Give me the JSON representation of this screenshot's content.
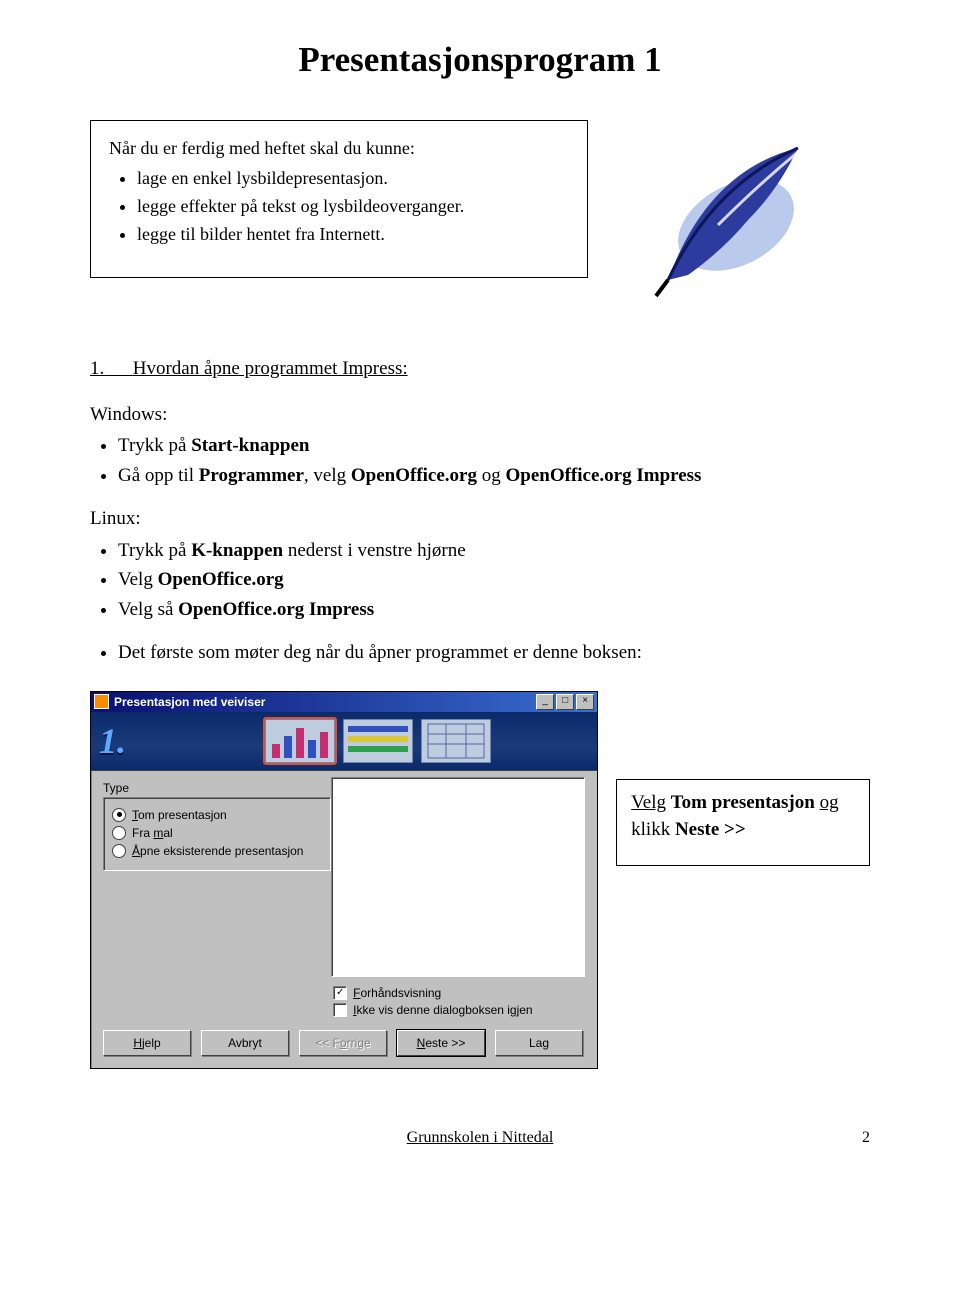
{
  "title": "Presentasjonsprogram 1",
  "intro": {
    "lead": "Når du er ferdig med heftet skal du kunne:",
    "items": [
      "lage en enkel lysbildepresentasjon.",
      "legge effekter på tekst og lysbildeoverganger.",
      "legge til bilder hentet fra Internett."
    ]
  },
  "section1": {
    "num": "1.",
    "heading": "Hvordan åpne programmet Impress:",
    "windows_label": "Windows:",
    "windows_items": [
      "Trykk på <b>Start-knappen</b>",
      "Gå opp til <b>Programmer</b>, velg <b>OpenOffice.org</b> og <b>OpenOffice.org Impress</b>"
    ],
    "linux_label": "Linux:",
    "linux_items": [
      "Trykk på <b>K-knappen</b> nederst i venstre hjørne",
      "Velg <b>OpenOffice.org</b>",
      "Velg så <b>OpenOffice.org Impress</b>"
    ],
    "after_items": [
      "Det første som møter deg når du åpner programmet er denne boksen:"
    ]
  },
  "dialog": {
    "title": "Presentasjon med veiviser",
    "banner_num": "1.",
    "type_label_html": "Type",
    "radios": [
      {
        "label_html": "<span class='underline-char'>T</span>om presentasjon",
        "checked": true
      },
      {
        "label_html": "Fra <span class='underline-char'>m</span>al",
        "checked": false
      },
      {
        "label_html": "<span class='underline-char'>Å</span>pne eksisterende presentasjon",
        "checked": false
      }
    ],
    "checks": [
      {
        "label_html": "<span class='underline-char'>F</span>orhåndsvisning",
        "checked": true
      },
      {
        "label_html": "<span class='underline-char'>I</span>kke vis denne dialogboksen igjen",
        "checked": false
      }
    ],
    "buttons": {
      "help_html": "<span class='underline-char'>H</span>jelp",
      "cancel": "Avbryt",
      "back_html": "<< F<span class='underline-char'>o</span>rrige",
      "next_html": "<span class='underline-char'>N</span>este >>",
      "create": "Lag"
    }
  },
  "callout_html": "<span class='u'>Velg</span>  <b>Tom presentasjon</b> <span class='u'>og</span> klikk <b>Neste >></b>",
  "footer": {
    "text": "Grunnskolen i Nittedal",
    "page": "2"
  },
  "colors": {
    "titlebar_from": "#081070",
    "titlebar_to": "#3a6ed0",
    "banner_bg": "#0a2a6a",
    "banner_num": "#60a8ff",
    "win_bg": "#c0c0c0",
    "feather_body": "#2d3a9e",
    "feather_shadow": "#9bb3e6"
  }
}
